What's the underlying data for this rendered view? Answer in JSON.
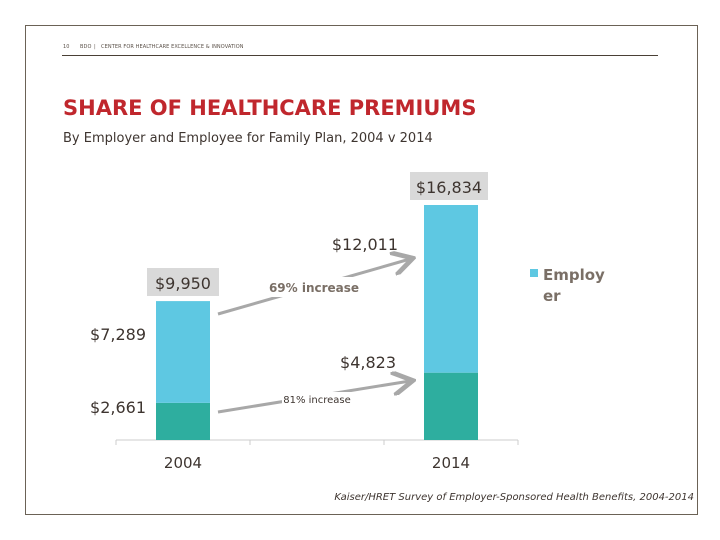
{
  "header": {
    "page_number": "10",
    "org": "BDO",
    "separator": "|",
    "section": "CENTER FOR HEALTHCARE EXCELLENCE & INNOVATION"
  },
  "title": "SHARE OF HEALTHCARE PREMIUMS",
  "subtitle": "By Employer and Employee for Family Plan, 2004 v 2014",
  "source": "Kaiser/HRET Survey of Employer-Sponsored Health Benefits, 2004-2014",
  "chart_data": {
    "type": "bar",
    "stacked": true,
    "categories": [
      "2004",
      "2014"
    ],
    "series": [
      {
        "values": [
          2661,
          4823
        ],
        "color": "#2eae9f"
      },
      {
        "name": "Employer",
        "values": [
          7289,
          12011
        ],
        "color": "#5ec8e2"
      }
    ],
    "totals": [
      9950,
      16834
    ],
    "data_labels": {
      "total_2004": "$9,950",
      "total_2014": "$16,834",
      "employer_2004": "$7,289",
      "employer_2014": "$12,011",
      "lower_2004": "$2,661",
      "lower_2014": "$4,823"
    },
    "annotations": [
      {
        "text": "69% increase",
        "from": "2004 total",
        "to": "2014 total"
      },
      {
        "text": "81% increase",
        "from": "2004 lower segment",
        "to": "2014 lower segment"
      }
    ],
    "legend": {
      "entries": [
        "Employer"
      ],
      "position": "right"
    },
    "grid": false,
    "axis_line_color": "#cccccc",
    "ylim": [
      0,
      16834
    ]
  }
}
